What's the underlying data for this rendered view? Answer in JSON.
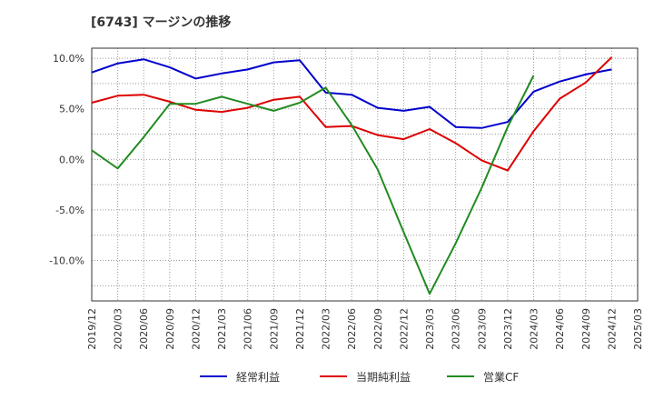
{
  "chart_data": {
    "type": "line",
    "title": "[6743]  マージンの推移",
    "x": [
      "2019/12",
      "2020/03",
      "2020/06",
      "2020/09",
      "2020/12",
      "2021/03",
      "2021/06",
      "2021/09",
      "2021/12",
      "2022/03",
      "2022/06",
      "2022/09",
      "2022/12",
      "2023/03",
      "2023/06",
      "2023/09",
      "2023/12",
      "2024/03",
      "2024/06",
      "2024/09",
      "2024/12",
      "2025/03"
    ],
    "ylim": [
      -14,
      11
    ],
    "yticks": [
      10,
      5,
      0,
      -5,
      -10
    ],
    "ytick_labels": [
      "10.0%",
      "5.0%",
      "0.0%",
      "-5.0%",
      "-10.0%"
    ],
    "grid": true,
    "legend_position": "bottom",
    "series": [
      {
        "name": "経常利益",
        "color": "#0000cc",
        "values": [
          8.6,
          9.5,
          9.9,
          9.1,
          8.0,
          8.5,
          8.9,
          9.6,
          9.8,
          6.6,
          6.4,
          5.1,
          4.8,
          5.2,
          3.2,
          3.1,
          3.7,
          6.7,
          7.7,
          8.4,
          8.9,
          null
        ]
      },
      {
        "name": "当期純利益",
        "color": "#dd0000",
        "values": [
          5.6,
          6.3,
          6.4,
          5.7,
          4.9,
          4.7,
          5.1,
          5.9,
          6.2,
          3.2,
          3.3,
          2.4,
          2.0,
          3.0,
          1.6,
          -0.1,
          -1.1,
          2.8,
          6.0,
          7.6,
          10.1,
          null
        ]
      },
      {
        "name": "営業CF",
        "color": "#228b22",
        "values": [
          0.9,
          -0.9,
          2.2,
          5.5,
          5.5,
          6.2,
          5.5,
          4.8,
          5.6,
          7.1,
          3.4,
          -1.0,
          -7.2,
          -13.3,
          -8.3,
          -2.8,
          3.2,
          8.3,
          null,
          null,
          null,
          null
        ]
      }
    ]
  }
}
